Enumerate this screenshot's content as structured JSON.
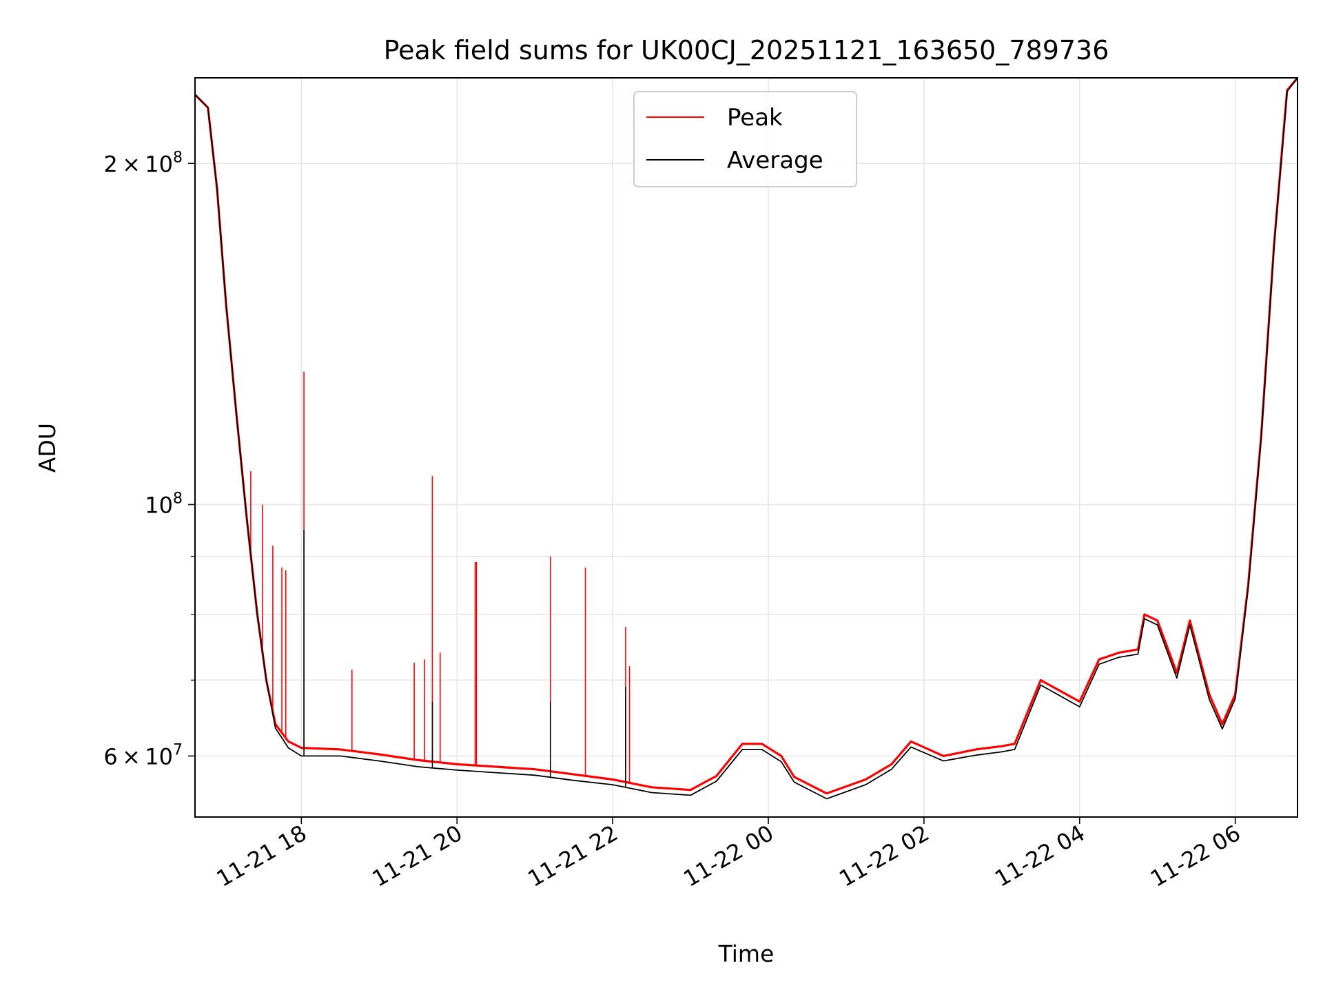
{
  "chart_data": {
    "type": "line",
    "title": "Peak field sums for UK00CJ_20251121_163650_789736",
    "xlabel": "Time",
    "ylabel": "ADU",
    "x_range": [
      "2025-11-21 16:38",
      "2025-11-22 06:48"
    ],
    "y_scale": "log",
    "ylim": [
      53000000,
      238000000
    ],
    "grid": true,
    "legend_position": "upper center",
    "x_ticks": [
      {
        "value": "2025-11-21 18:00",
        "label": "11-21 18"
      },
      {
        "value": "2025-11-21 20:00",
        "label": "11-21 20"
      },
      {
        "value": "2025-11-21 22:00",
        "label": "11-21 22"
      },
      {
        "value": "2025-11-22 00:00",
        "label": "11-22 00"
      },
      {
        "value": "2025-11-22 02:00",
        "label": "11-22 02"
      },
      {
        "value": "2025-11-22 04:00",
        "label": "11-22 04"
      },
      {
        "value": "2025-11-22 06:00",
        "label": "11-22 06"
      }
    ],
    "y_ticks": [
      {
        "value": 60000000,
        "mantissa": "6",
        "exp": "7"
      },
      {
        "value": 100000000,
        "mantissa": "",
        "exp": "8"
      },
      {
        "value": 200000000,
        "mantissa": "2",
        "exp": "8"
      }
    ],
    "y_minor_ticks": [
      70000000,
      80000000,
      90000000
    ],
    "series": [
      {
        "name": "Peak",
        "color": "#ff0000",
        "points": [
          [
            "2025-11-21 16:38",
            230000000
          ],
          [
            "2025-11-21 16:48",
            224000000
          ],
          [
            "2025-11-21 16:55",
            190000000
          ],
          [
            "2025-11-21 17:02",
            150000000
          ],
          [
            "2025-11-21 17:10",
            120000000
          ],
          [
            "2025-11-21 17:18",
            97000000
          ],
          [
            "2025-11-21 17:26",
            80000000
          ],
          [
            "2025-11-21 17:33",
            70000000
          ],
          [
            "2025-11-21 17:40",
            64000000
          ],
          [
            "2025-11-21 17:50",
            61800000
          ],
          [
            "2025-11-21 18:00",
            61000000
          ],
          [
            "2025-11-21 18:30",
            60800000
          ],
          [
            "2025-11-21 19:00",
            60200000
          ],
          [
            "2025-11-21 19:30",
            59500000
          ],
          [
            "2025-11-21 20:00",
            59000000
          ],
          [
            "2025-11-21 20:30",
            58700000
          ],
          [
            "2025-11-21 21:00",
            58400000
          ],
          [
            "2025-11-21 21:30",
            57800000
          ],
          [
            "2025-11-21 22:00",
            57200000
          ],
          [
            "2025-11-21 22:30",
            56300000
          ],
          [
            "2025-11-21 23:00",
            56000000
          ],
          [
            "2025-11-21 23:20",
            57600000
          ],
          [
            "2025-11-21 23:40",
            61500000
          ],
          [
            "2025-11-21 23:55",
            61500000
          ],
          [
            "2025-11-22 00:10",
            60000000
          ],
          [
            "2025-11-22 00:20",
            57500000
          ],
          [
            "2025-11-22 00:45",
            55600000
          ],
          [
            "2025-11-22 01:15",
            57200000
          ],
          [
            "2025-11-22 01:35",
            59000000
          ],
          [
            "2025-11-22 01:50",
            61800000
          ],
          [
            "2025-11-22 02:15",
            60000000
          ],
          [
            "2025-11-22 02:40",
            60800000
          ],
          [
            "2025-11-22 03:00",
            61200000
          ],
          [
            "2025-11-22 03:10",
            61500000
          ],
          [
            "2025-11-22 03:30",
            70000000
          ],
          [
            "2025-11-22 04:00",
            67000000
          ],
          [
            "2025-11-22 04:15",
            73000000
          ],
          [
            "2025-11-22 04:30",
            74000000
          ],
          [
            "2025-11-22 04:45",
            74500000
          ],
          [
            "2025-11-22 04:50",
            80000000
          ],
          [
            "2025-11-22 05:00",
            79000000
          ],
          [
            "2025-11-22 05:15",
            71000000
          ],
          [
            "2025-11-22 05:25",
            79000000
          ],
          [
            "2025-11-22 05:40",
            68000000
          ],
          [
            "2025-11-22 05:50",
            64000000
          ],
          [
            "2025-11-22 06:00",
            68000000
          ],
          [
            "2025-11-22 06:10",
            85000000
          ],
          [
            "2025-11-22 06:20",
            115000000
          ],
          [
            "2025-11-22 06:30",
            170000000
          ],
          [
            "2025-11-22 06:40",
            232000000
          ],
          [
            "2025-11-22 06:48",
            238000000
          ]
        ],
        "spikes": [
          [
            "2025-11-21 17:21",
            107000000
          ],
          [
            "2025-11-21 17:30",
            100000000
          ],
          [
            "2025-11-21 17:38",
            92000000
          ],
          [
            "2025-11-21 17:45",
            88000000
          ],
          [
            "2025-11-21 17:48",
            87500000
          ],
          [
            "2025-11-21 18:02",
            131000000
          ],
          [
            "2025-11-21 18:39",
            71500000
          ],
          [
            "2025-11-21 19:27",
            72500000
          ],
          [
            "2025-11-21 19:35",
            73000000
          ],
          [
            "2025-11-21 19:41",
            106000000
          ],
          [
            "2025-11-21 19:47",
            74000000
          ],
          [
            "2025-11-21 20:14",
            89000000
          ],
          [
            "2025-11-21 20:15",
            89000000
          ],
          [
            "2025-11-21 21:12",
            90000000
          ],
          [
            "2025-11-21 21:39",
            88000000
          ],
          [
            "2025-11-21 22:10",
            78000000
          ],
          [
            "2025-11-21 22:13",
            72000000
          ]
        ]
      },
      {
        "name": "Average",
        "color": "#000000",
        "points": [
          [
            "2025-11-21 16:38",
            230000000
          ],
          [
            "2025-11-21 16:48",
            224000000
          ],
          [
            "2025-11-21 16:55",
            190000000
          ],
          [
            "2025-11-21 17:02",
            150000000
          ],
          [
            "2025-11-21 17:10",
            120000000
          ],
          [
            "2025-11-21 17:18",
            97000000
          ],
          [
            "2025-11-21 17:26",
            80000000
          ],
          [
            "2025-11-21 17:33",
            70000000
          ],
          [
            "2025-11-21 17:40",
            63500000
          ],
          [
            "2025-11-21 17:50",
            61000000
          ],
          [
            "2025-11-21 18:00",
            60000000
          ],
          [
            "2025-11-21 18:30",
            60000000
          ],
          [
            "2025-11-21 19:00",
            59400000
          ],
          [
            "2025-11-21 19:30",
            58700000
          ],
          [
            "2025-11-21 20:00",
            58300000
          ],
          [
            "2025-11-21 20:30",
            58000000
          ],
          [
            "2025-11-21 21:00",
            57700000
          ],
          [
            "2025-11-21 21:30",
            57100000
          ],
          [
            "2025-11-21 22:00",
            56600000
          ],
          [
            "2025-11-21 22:30",
            55700000
          ],
          [
            "2025-11-21 23:00",
            55400000
          ],
          [
            "2025-11-21 23:20",
            57000000
          ],
          [
            "2025-11-21 23:40",
            60800000
          ],
          [
            "2025-11-21 23:55",
            60800000
          ],
          [
            "2025-11-22 00:10",
            59300000
          ],
          [
            "2025-11-22 00:20",
            56900000
          ],
          [
            "2025-11-22 00:45",
            55000000
          ],
          [
            "2025-11-22 01:15",
            56600000
          ],
          [
            "2025-11-22 01:35",
            58400000
          ],
          [
            "2025-11-22 01:50",
            61100000
          ],
          [
            "2025-11-22 02:15",
            59400000
          ],
          [
            "2025-11-22 02:40",
            60100000
          ],
          [
            "2025-11-22 03:00",
            60500000
          ],
          [
            "2025-11-22 03:10",
            60800000
          ],
          [
            "2025-11-22 03:30",
            69300000
          ],
          [
            "2025-11-22 04:00",
            66300000
          ],
          [
            "2025-11-22 04:15",
            72300000
          ],
          [
            "2025-11-22 04:30",
            73300000
          ],
          [
            "2025-11-22 04:45",
            73800000
          ],
          [
            "2025-11-22 04:50",
            79300000
          ],
          [
            "2025-11-22 05:00",
            78300000
          ],
          [
            "2025-11-22 05:15",
            70300000
          ],
          [
            "2025-11-22 05:25",
            78300000
          ],
          [
            "2025-11-22 05:40",
            67300000
          ],
          [
            "2025-11-22 05:50",
            63400000
          ],
          [
            "2025-11-22 06:00",
            67400000
          ],
          [
            "2025-11-22 06:10",
            84500000
          ],
          [
            "2025-11-22 06:20",
            114500000
          ],
          [
            "2025-11-22 06:30",
            169500000
          ],
          [
            "2025-11-22 06:40",
            231500000
          ],
          [
            "2025-11-22 06:48",
            238000000
          ]
        ],
        "spikes": [
          [
            "2025-11-21 18:02",
            95000000
          ],
          [
            "2025-11-21 19:41",
            67000000
          ],
          [
            "2025-11-21 21:12",
            67000000
          ],
          [
            "2025-11-21 22:10",
            69000000
          ]
        ]
      }
    ]
  }
}
